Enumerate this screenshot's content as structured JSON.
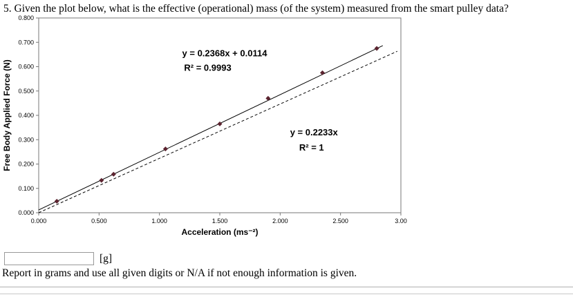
{
  "question": {
    "text": "5. Given the plot below, what is the effective (operational) mass (of the system) measured from the smart pulley data?"
  },
  "answer": {
    "value": "",
    "unit": "[g]",
    "instruction": "Report in grams and use all given digits or N/A if not enough information is given."
  },
  "chart_data": {
    "type": "scatter",
    "title": "",
    "xlabel": "Acceleration (ms⁻²)",
    "ylabel": "Free Body Applied Force (N)",
    "xlim": [
      0,
      3.0
    ],
    "ylim": [
      0,
      0.8
    ],
    "grid": false,
    "legend": "none",
    "xticks": [
      0,
      0.5,
      1.0,
      1.5,
      2.0,
      2.5,
      3.0
    ],
    "xtick_labels": [
      "0.000",
      "0.500",
      "1.000",
      "1.500",
      "2.000",
      "2.500",
      "3.00"
    ],
    "yticks": [
      0,
      0.1,
      0.2,
      0.3,
      0.4,
      0.5,
      0.6,
      0.7,
      0.8
    ],
    "ytick_labels": [
      "0.000",
      "0.100",
      "0.200",
      "0.300",
      "0.400",
      "0.500",
      "0.600",
      "0.700",
      "0.800"
    ],
    "points": [
      [
        0.15,
        0.047
      ],
      [
        0.52,
        0.133
      ],
      [
        0.62,
        0.158
      ],
      [
        1.05,
        0.262
      ],
      [
        1.5,
        0.365
      ],
      [
        1.9,
        0.47
      ],
      [
        2.35,
        0.575
      ],
      [
        2.8,
        0.675
      ]
    ],
    "fits": [
      {
        "style": "solid",
        "slope": 0.2368,
        "intercept": 0.0114,
        "x_start": 0,
        "x_end": 2.85
      },
      {
        "style": "dashed",
        "slope": 0.2233,
        "intercept": 0,
        "x_start": 0,
        "x_end": 2.97
      }
    ],
    "annotations": [
      {
        "text": "y = 0.2368x + 0.0114",
        "x": 1.54,
        "y": 0.642
      },
      {
        "text": "R² = 0.9993",
        "x": 1.4,
        "y": 0.583
      },
      {
        "text": "y = 0.2233x",
        "x": 2.28,
        "y": 0.318
      },
      {
        "text": "R² = 1",
        "x": 2.26,
        "y": 0.255
      }
    ],
    "colors": {
      "point": "#5c2430",
      "solid_line": "#000000",
      "dashed_line": "#000000",
      "axis": "#777777",
      "text": "#000000"
    }
  }
}
